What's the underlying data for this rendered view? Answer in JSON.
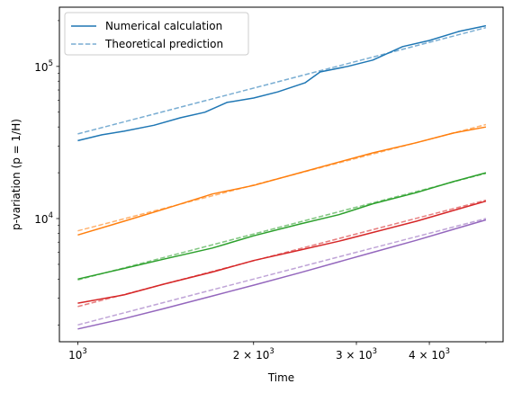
{
  "chart_data": {
    "type": "line",
    "xscale": "log",
    "yscale": "log",
    "xlabel": "Time",
    "ylabel": "p-variation (p = 1/H)",
    "xlim": [
      930,
      5350
    ],
    "ylim": [
      1550,
      245000
    ],
    "x_ticks": [
      {
        "value": 1000,
        "base": "10",
        "exp": "3",
        "coef": ""
      },
      {
        "value": 2000,
        "base": "10",
        "exp": "3",
        "coef": "2 × "
      },
      {
        "value": 3000,
        "base": "10",
        "exp": "3",
        "coef": "3 × "
      },
      {
        "value": 4000,
        "base": "10",
        "exp": "3",
        "coef": "4 × "
      }
    ],
    "x_minor_ticks": [
      5000
    ],
    "y_ticks": [
      {
        "value": 10000,
        "base": "10",
        "exp": "4"
      },
      {
        "value": 100000,
        "base": "10",
        "exp": "5"
      }
    ],
    "y_minor_ticks": [
      2000,
      3000,
      4000,
      5000,
      6000,
      7000,
      8000,
      9000,
      20000,
      30000,
      40000,
      50000,
      60000,
      70000,
      80000,
      90000,
      200000
    ],
    "grid": false,
    "legend": {
      "position": "top-left",
      "entries": [
        {
          "label": "Numerical calculation",
          "style": "solid",
          "color": "#1f77b4"
        },
        {
          "label": "Theoretical prediction",
          "style": "dashed",
          "color": "#1f77b4"
        }
      ]
    },
    "series": [
      {
        "color": "#1f77b4",
        "numerical": [
          [
            1000,
            32500
          ],
          [
            1100,
            35500
          ],
          [
            1200,
            37500
          ],
          [
            1350,
            41000
          ],
          [
            1500,
            46000
          ],
          [
            1650,
            50000
          ],
          [
            1800,
            58000
          ],
          [
            2000,
            62000
          ],
          [
            2200,
            68000
          ],
          [
            2450,
            78000
          ],
          [
            2600,
            92000
          ],
          [
            2900,
            100000
          ],
          [
            3200,
            110000
          ],
          [
            3600,
            135000
          ],
          [
            4000,
            148000
          ],
          [
            4500,
            170000
          ],
          [
            5000,
            185000
          ]
        ],
        "theory": [
          [
            1000,
            36000
          ],
          [
            5000,
            180000
          ]
        ]
      },
      {
        "color": "#ff7f0e",
        "numerical": [
          [
            1000,
            7800
          ],
          [
            1200,
            9600
          ],
          [
            1400,
            11500
          ],
          [
            1700,
            14500
          ],
          [
            2000,
            16500
          ],
          [
            2400,
            20000
          ],
          [
            2800,
            23500
          ],
          [
            3200,
            27000
          ],
          [
            3800,
            31500
          ],
          [
            4400,
            36500
          ],
          [
            5000,
            40000
          ]
        ],
        "theory": [
          [
            1000,
            8300
          ],
          [
            5000,
            41500
          ]
        ]
      },
      {
        "color": "#2ca02c",
        "numerical": [
          [
            1000,
            4000
          ],
          [
            1200,
            4700
          ],
          [
            1400,
            5400
          ],
          [
            1700,
            6400
          ],
          [
            2000,
            7700
          ],
          [
            2400,
            9200
          ],
          [
            2800,
            10600
          ],
          [
            3200,
            12500
          ],
          [
            3800,
            14800
          ],
          [
            4400,
            17500
          ],
          [
            5000,
            20000
          ]
        ],
        "theory": [
          [
            1000,
            3950
          ],
          [
            5000,
            19800
          ]
        ]
      },
      {
        "color": "#d62728",
        "numerical": [
          [
            1000,
            2780
          ],
          [
            1200,
            3150
          ],
          [
            1400,
            3700
          ],
          [
            1700,
            4450
          ],
          [
            2000,
            5300
          ],
          [
            2400,
            6200
          ],
          [
            2800,
            7100
          ],
          [
            3200,
            8100
          ],
          [
            3800,
            9600
          ],
          [
            4400,
            11300
          ],
          [
            5000,
            13000
          ]
        ],
        "theory": [
          [
            1000,
            2640
          ],
          [
            5000,
            13200
          ]
        ]
      },
      {
        "color": "#9467bd",
        "numerical": [
          [
            1000,
            1880
          ],
          [
            1200,
            2200
          ],
          [
            1400,
            2550
          ],
          [
            1700,
            3100
          ],
          [
            2000,
            3650
          ],
          [
            2400,
            4400
          ],
          [
            2800,
            5200
          ],
          [
            3200,
            6000
          ],
          [
            3800,
            7200
          ],
          [
            4400,
            8500
          ],
          [
            5000,
            9800
          ]
        ],
        "theory": [
          [
            1000,
            2000
          ],
          [
            5000,
            10000
          ]
        ]
      }
    ]
  }
}
